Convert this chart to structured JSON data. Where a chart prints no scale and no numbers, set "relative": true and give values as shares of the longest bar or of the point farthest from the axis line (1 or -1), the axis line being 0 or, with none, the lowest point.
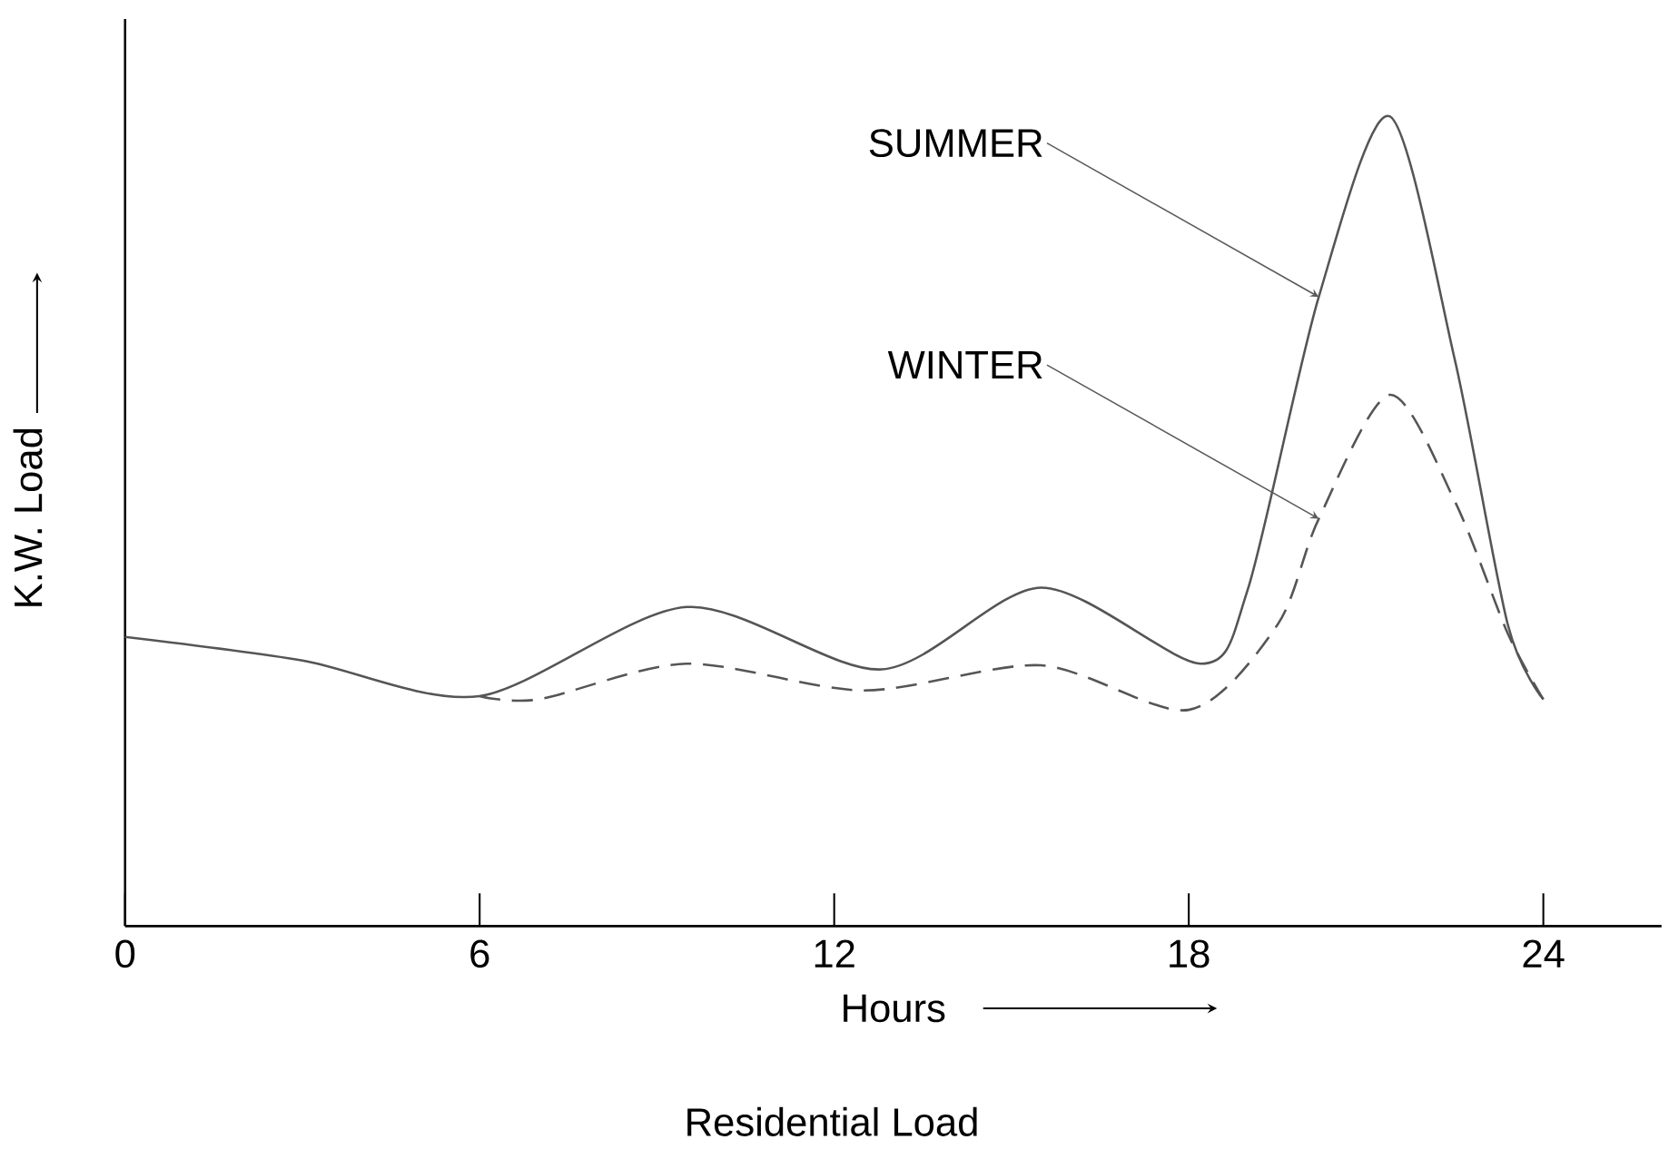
{
  "chart_data": {
    "type": "line",
    "title": "Residential Load",
    "xlabel": "Hours",
    "ylabel": "K.W. Load",
    "relative": true,
    "xlim": [
      0,
      26
    ],
    "xticks": [
      0,
      6,
      12,
      18,
      24
    ],
    "series": [
      {
        "color": "#555555",
        "line_style": "solid",
        "x": [
          0,
          3,
          6,
          9.5,
          12.8,
          15.5,
          18.2,
          19,
          20.2,
          21.4,
          22.5,
          23.4,
          24
        ],
        "values": [
          0.357,
          0.328,
          0.284,
          0.394,
          0.317,
          0.418,
          0.324,
          0.416,
          0.777,
          1,
          0.7,
          0.372,
          0.28
        ]
      },
      {
        "color": "#555555",
        "line_style": "dashed",
        "x": [
          6,
          7,
          9.5,
          12.5,
          15.5,
          18,
          19.5,
          20.2,
          21.4,
          22.5,
          23.4,
          24
        ],
        "values": [
          0.284,
          0.28,
          0.324,
          0.291,
          0.322,
          0.267,
          0.372,
          0.503,
          0.656,
          0.525,
          0.361,
          0.28
        ]
      }
    ],
    "annotations": [
      {
        "text": "SUMMER",
        "x": 20.2,
        "y": 0.777
      },
      {
        "text": "WINTER",
        "x": 20.2,
        "y": 0.503
      }
    ]
  }
}
